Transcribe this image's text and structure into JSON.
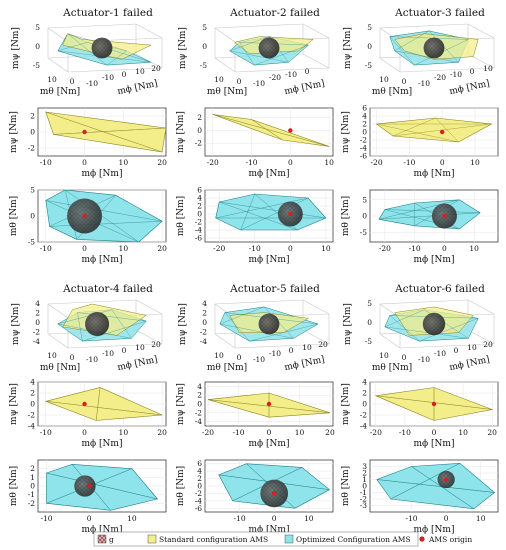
{
  "figure": {
    "legend": [
      {
        "label": "g",
        "color": "#e8a0a0",
        "swatch": "hatched"
      },
      {
        "label": "Standard configuration AMS",
        "color": "#f3ee8a",
        "swatch": "box"
      },
      {
        "label": "Optimized Configuration AMS",
        "color": "#8fe3ea",
        "swatch": "box"
      },
      {
        "label": "AMS origin",
        "color": "#d42020",
        "swatch": "dot"
      }
    ]
  },
  "chart_data": [
    {
      "type": "area",
      "title": "Actuator-1 failed",
      "view": "3d",
      "xlabel": "mθ [Nm]",
      "ylabel": "mϕ [Nm]",
      "zlabel": "mψ [Nm]",
      "x_ticks": [
        "10",
        "0",
        "-10"
      ],
      "y_ticks": [
        "-10",
        "0",
        "10",
        "20"
      ],
      "z_ticks": [
        "5",
        "0",
        "-5"
      ],
      "yellow": [
        [
          -7,
          5
        ],
        [
          -4,
          3
        ],
        [
          10,
          1
        ],
        [
          4,
          -4
        ],
        [
          -8,
          1
        ]
      ],
      "cyan": [
        [
          -7,
          5
        ],
        [
          -3,
          2
        ],
        [
          5,
          -1
        ],
        [
          10,
          -5
        ],
        [
          1,
          -6
        ],
        [
          -9,
          -1
        ]
      ],
      "sphere": {
        "center": [
          0,
          0
        ],
        "radius": 2.6
      }
    },
    {
      "type": "area",
      "title": "Actuator-2 failed",
      "view": "3d",
      "xlabel": "mθ [Nm]",
      "ylabel": "mϕ [Nm]",
      "zlabel": "mψ [Nm]",
      "x_ticks": [
        "10",
        "0",
        "-10"
      ],
      "y_ticks": [
        "-20",
        "-10",
        "0"
      ],
      "z_ticks": [
        "5",
        "0",
        "-5"
      ],
      "yellow": [
        [
          -7,
          2
        ],
        [
          -2,
          4
        ],
        [
          9,
          3
        ],
        [
          6,
          -1
        ],
        [
          -4,
          -2
        ]
      ],
      "cyan": [
        [
          -6,
          2
        ],
        [
          0,
          4
        ],
        [
          8,
          1
        ],
        [
          4,
          -5
        ],
        [
          -3,
          -6
        ],
        [
          -8,
          -1
        ]
      ],
      "sphere": {
        "center": [
          0,
          0
        ],
        "radius": 2.6
      }
    },
    {
      "type": "area",
      "title": "Actuator-3 failed",
      "view": "3d",
      "xlabel": "mθ [Nm]",
      "ylabel": "mϕ [Nm]",
      "zlabel": "mψ [Nm]",
      "x_ticks": [
        "10",
        "0",
        "-10"
      ],
      "y_ticks": [
        "-20",
        "-10",
        "0",
        "10"
      ],
      "z_ticks": [
        "5",
        "0",
        "-5"
      ],
      "yellow": [
        [
          -8,
          3
        ],
        [
          -2,
          5
        ],
        [
          9,
          3
        ],
        [
          8,
          -3
        ],
        [
          0,
          -4
        ],
        [
          -6,
          -1
        ]
      ],
      "cyan": [
        [
          -9,
          4
        ],
        [
          -1,
          6
        ],
        [
          7,
          3
        ],
        [
          5,
          -5
        ],
        [
          -4,
          -6
        ],
        [
          -8,
          -1
        ]
      ],
      "sphere": {
        "center": [
          0,
          0
        ],
        "radius": 2.6
      }
    },
    {
      "type": "area",
      "title": "",
      "view": "2d",
      "xlabel": "mϕ [Nm]",
      "ylabel": "mψ [Nm]",
      "xlim": [
        -12,
        21
      ],
      "ylim": [
        -3,
        3
      ],
      "x_ticks": [
        -10,
        0,
        10,
        20
      ],
      "y_ticks": [
        -2,
        0,
        2
      ],
      "yellow": [
        [
          -10,
          2.5
        ],
        [
          21,
          0.5
        ],
        [
          20,
          -2.5
        ],
        [
          -8,
          -0.3
        ]
      ],
      "cyan": [],
      "sphere": null,
      "origin": [
        0,
        0
      ]
    },
    {
      "type": "area",
      "title": "",
      "view": "2d",
      "xlabel": "mϕ [Nm]",
      "ylabel": "mψ [Nm]",
      "xlim": [
        -22,
        11
      ],
      "ylim": [
        -4,
        3.5
      ],
      "x_ticks": [
        -20,
        -10,
        0,
        10
      ],
      "y_ticks": [
        -2,
        0,
        2
      ],
      "yellow": [
        [
          -20,
          2.5
        ],
        [
          -10,
          1.7
        ],
        [
          10,
          -2.5
        ],
        [
          -2,
          -1.5
        ]
      ],
      "cyan": [],
      "sphere": null,
      "origin": [
        0,
        0
      ]
    },
    {
      "type": "area",
      "title": "",
      "view": "2d",
      "xlabel": "mϕ [Nm]",
      "ylabel": "mψ [Nm]",
      "xlim": [
        -22,
        17
      ],
      "ylim": [
        -6,
        6
      ],
      "x_ticks": [
        -20,
        -10,
        0,
        10
      ],
      "y_ticks": [
        -6,
        -4,
        -2,
        0,
        2,
        4,
        6
      ],
      "yellow": [
        [
          -20,
          2
        ],
        [
          -2,
          3.5
        ],
        [
          15,
          2
        ],
        [
          5,
          -2.5
        ],
        [
          -15,
          -1
        ]
      ],
      "cyan": [],
      "sphere": null,
      "origin": [
        0,
        0
      ]
    },
    {
      "type": "area",
      "title": "",
      "view": "2d",
      "xlabel": "mϕ [Nm]",
      "ylabel": "mθ [Nm]",
      "xlim": [
        -12,
        21
      ],
      "ylim": [
        -5,
        5
      ],
      "x_ticks": [
        -10,
        0,
        10,
        20
      ],
      "y_ticks": [
        -5,
        0,
        5
      ],
      "yellow": [],
      "cyan": [
        [
          -10,
          3
        ],
        [
          -5,
          5
        ],
        [
          8,
          4
        ],
        [
          20,
          -1
        ],
        [
          14,
          -5
        ],
        [
          -2,
          -4.5
        ],
        [
          -9,
          -2
        ]
      ],
      "sphere": {
        "center": [
          0,
          0
        ],
        "radius": 4.5
      },
      "origin": [
        0,
        0
      ]
    },
    {
      "type": "area",
      "title": "",
      "view": "2d",
      "xlabel": "mϕ [Nm]",
      "ylabel": "mθ [Nm]",
      "xlim": [
        -24,
        12
      ],
      "ylim": [
        -7,
        6
      ],
      "x_ticks": [
        -20,
        -10,
        0,
        10
      ],
      "y_ticks": [
        -6,
        -4,
        -2,
        0,
        2,
        4,
        6
      ],
      "yellow": [],
      "cyan": [
        [
          -20,
          3
        ],
        [
          -10,
          5
        ],
        [
          5,
          4
        ],
        [
          10,
          -1
        ],
        [
          2,
          -4
        ],
        [
          -14,
          -4
        ],
        [
          -21,
          -1
        ]
      ],
      "sphere": {
        "center": [
          0,
          0
        ],
        "radius": 3.5
      },
      "origin": [
        0,
        0
      ]
    },
    {
      "type": "area",
      "title": "",
      "view": "2d",
      "xlabel": "mϕ [Nm]",
      "ylabel": "mθ [Nm]",
      "xlim": [
        -25,
        18
      ],
      "ylim": [
        -8,
        8
      ],
      "x_ticks": [
        -20,
        -10,
        0,
        10
      ],
      "y_ticks": [
        -5,
        0,
        5
      ],
      "yellow": [],
      "cyan": [
        [
          -20,
          2
        ],
        [
          -10,
          4
        ],
        [
          5,
          5
        ],
        [
          12,
          1
        ],
        [
          5,
          -4
        ],
        [
          -10,
          -3
        ],
        [
          -22,
          -1
        ]
      ],
      "sphere": {
        "center": [
          0,
          0
        ],
        "radius": 4.2
      },
      "origin": [
        0,
        0
      ]
    },
    {
      "type": "area",
      "title": "Actuator-4 failed",
      "view": "3d",
      "xlabel": "mθ [Nm]",
      "ylabel": "mϕ [Nm]",
      "zlabel": "mψ [Nm]",
      "x_ticks": [
        "10",
        "0",
        "-10"
      ],
      "y_ticks": [
        "-10",
        "0",
        "10",
        "20"
      ],
      "z_ticks": [
        "4",
        "2",
        "0",
        "-2",
        "-4"
      ],
      "yellow": [
        [
          -6,
          5
        ],
        [
          -2,
          7
        ],
        [
          9,
          3
        ],
        [
          3,
          -4
        ],
        [
          -8,
          -1
        ]
      ],
      "cyan": [
        [
          -5,
          4
        ],
        [
          2,
          5
        ],
        [
          9,
          1
        ],
        [
          6,
          -5
        ],
        [
          -4,
          -6
        ],
        [
          -9,
          0
        ]
      ],
      "sphere": {
        "center": [
          -1,
          0
        ],
        "radius": 3.0
      }
    },
    {
      "type": "area",
      "title": "Actuator-5 failed",
      "view": "3d",
      "xlabel": "mθ [Nm]",
      "ylabel": "mϕ [Nm]",
      "zlabel": "mψ [Nm]",
      "x_ticks": [
        "10",
        "0",
        "-10"
      ],
      "y_ticks": [
        "-10",
        "0",
        "10",
        "20"
      ],
      "z_ticks": [
        "4",
        "2",
        "0",
        "-2",
        "-4"
      ],
      "yellow": [
        [
          -8,
          3
        ],
        [
          -1,
          4
        ],
        [
          8,
          2
        ],
        [
          3,
          -3
        ],
        [
          -6,
          -3
        ]
      ],
      "cyan": [
        [
          -9,
          4
        ],
        [
          -1,
          6
        ],
        [
          10,
          0
        ],
        [
          5,
          -5
        ],
        [
          -4,
          -6
        ],
        [
          -10,
          0
        ]
      ],
      "sphere": {
        "center": [
          0,
          0
        ],
        "radius": 2.6
      }
    },
    {
      "type": "area",
      "title": "Actuator-6 failed",
      "view": "3d",
      "xlabel": "mθ [Nm]",
      "ylabel": "mϕ [Nm]",
      "zlabel": "mψ [Nm]",
      "x_ticks": [
        "10",
        "0",
        "-10"
      ],
      "y_ticks": [
        "-10",
        "0",
        "10",
        "20"
      ],
      "z_ticks": [
        "5",
        "0",
        "-5"
      ],
      "yellow": [
        [
          -8,
          4
        ],
        [
          0,
          6
        ],
        [
          8,
          3
        ],
        [
          5,
          -3
        ],
        [
          -5,
          -4
        ]
      ],
      "cyan": [
        [
          -9,
          3
        ],
        [
          -2,
          5
        ],
        [
          9,
          2
        ],
        [
          7,
          -5
        ],
        [
          -3,
          -6
        ],
        [
          -10,
          -1
        ]
      ],
      "sphere": {
        "center": [
          0,
          0
        ],
        "radius": 2.8
      }
    },
    {
      "type": "area",
      "title": "",
      "view": "2d",
      "xlabel": "mϕ [Nm]",
      "ylabel": "mψ [Nm]",
      "xlim": [
        -12,
        21
      ],
      "ylim": [
        -4,
        4
      ],
      "x_ticks": [
        -10,
        0,
        10,
        20
      ],
      "y_ticks": [
        -4,
        -2,
        0,
        2,
        4
      ],
      "yellow": [
        [
          -10,
          0.5
        ],
        [
          4,
          3
        ],
        [
          20,
          -2
        ],
        [
          3,
          -3
        ]
      ],
      "cyan": [],
      "sphere": null,
      "origin": [
        0,
        0
      ]
    },
    {
      "type": "area",
      "title": "",
      "view": "2d",
      "xlabel": "mϕ [Nm]",
      "ylabel": "mψ [Nm]",
      "xlim": [
        -21,
        21
      ],
      "ylim": [
        -5,
        5
      ],
      "x_ticks": [
        -20,
        -10,
        0,
        10,
        20
      ],
      "y_ticks": [
        -4,
        -2,
        0,
        2,
        4
      ],
      "yellow": [
        [
          -20,
          1
        ],
        [
          0,
          2.5
        ],
        [
          20,
          -2
        ],
        [
          0,
          -3
        ]
      ],
      "cyan": [],
      "sphere": null,
      "origin": [
        0,
        0
      ]
    },
    {
      "type": "area",
      "title": "",
      "view": "2d",
      "xlabel": "mϕ [Nm]",
      "ylabel": "mψ [Nm]",
      "xlim": [
        -22,
        22
      ],
      "ylim": [
        -4,
        4
      ],
      "x_ticks": [
        -20,
        -10,
        0,
        10,
        20
      ],
      "y_ticks": [
        -4,
        -2,
        0,
        2,
        4
      ],
      "yellow": [
        [
          -20,
          1.5
        ],
        [
          0,
          3
        ],
        [
          20,
          -1
        ],
        [
          0,
          -3
        ]
      ],
      "cyan": [],
      "sphere": null,
      "origin": [
        0,
        0
      ]
    },
    {
      "type": "area",
      "title": "",
      "view": "2d",
      "xlabel": "mϕ [Nm]",
      "ylabel": "mθ [Nm]",
      "xlim": [
        -12,
        18
      ],
      "ylim": [
        -3,
        3
      ],
      "x_ticks": [
        -10,
        0,
        10
      ],
      "y_ticks": [
        -2,
        -1,
        0,
        1,
        2
      ],
      "yellow": [],
      "cyan": [
        [
          -10,
          1.5
        ],
        [
          -4,
          2.5
        ],
        [
          10,
          2
        ],
        [
          16,
          -1.5
        ],
        [
          5,
          -2.8
        ],
        [
          -10,
          -2
        ]
      ],
      "sphere": {
        "center": [
          -1,
          0
        ],
        "radius": 2.5
      },
      "origin": [
        0,
        0
      ]
    },
    {
      "type": "area",
      "title": "",
      "view": "2d",
      "xlabel": "mϕ [Nm]",
      "ylabel": "mθ [Nm]",
      "xlim": [
        -20,
        17
      ],
      "ylim": [
        -7,
        7
      ],
      "x_ticks": [
        -10,
        0,
        10
      ],
      "y_ticks": [
        -6,
        -4,
        -2,
        0,
        2,
        4,
        6
      ],
      "yellow": [],
      "cyan": [
        [
          -16,
          3
        ],
        [
          -8,
          6
        ],
        [
          8,
          5
        ],
        [
          16,
          -1
        ],
        [
          6,
          -6
        ],
        [
          -12,
          -4
        ]
      ],
      "sphere": {
        "center": [
          0,
          -2
        ],
        "radius": 4.0
      },
      "origin": [
        0,
        -2
      ]
    },
    {
      "type": "area",
      "title": "",
      "view": "2d",
      "xlabel": "mϕ [Nm]",
      "ylabel": "mθ [Nm]",
      "xlim": [
        -22,
        15
      ],
      "ylim": [
        -4,
        4
      ],
      "x_ticks": [
        -10,
        0,
        10
      ],
      "y_ticks": [
        -3,
        -2,
        -1,
        0,
        1,
        2,
        3
      ],
      "yellow": [],
      "cyan": [
        [
          -20,
          1
        ],
        [
          -10,
          3
        ],
        [
          4,
          3.5
        ],
        [
          14,
          -1
        ],
        [
          8,
          -3.5
        ],
        [
          -16,
          -2
        ]
      ],
      "sphere": {
        "center": [
          0,
          1
        ],
        "radius": 2.5
      },
      "origin": [
        0,
        1
      ]
    }
  ]
}
